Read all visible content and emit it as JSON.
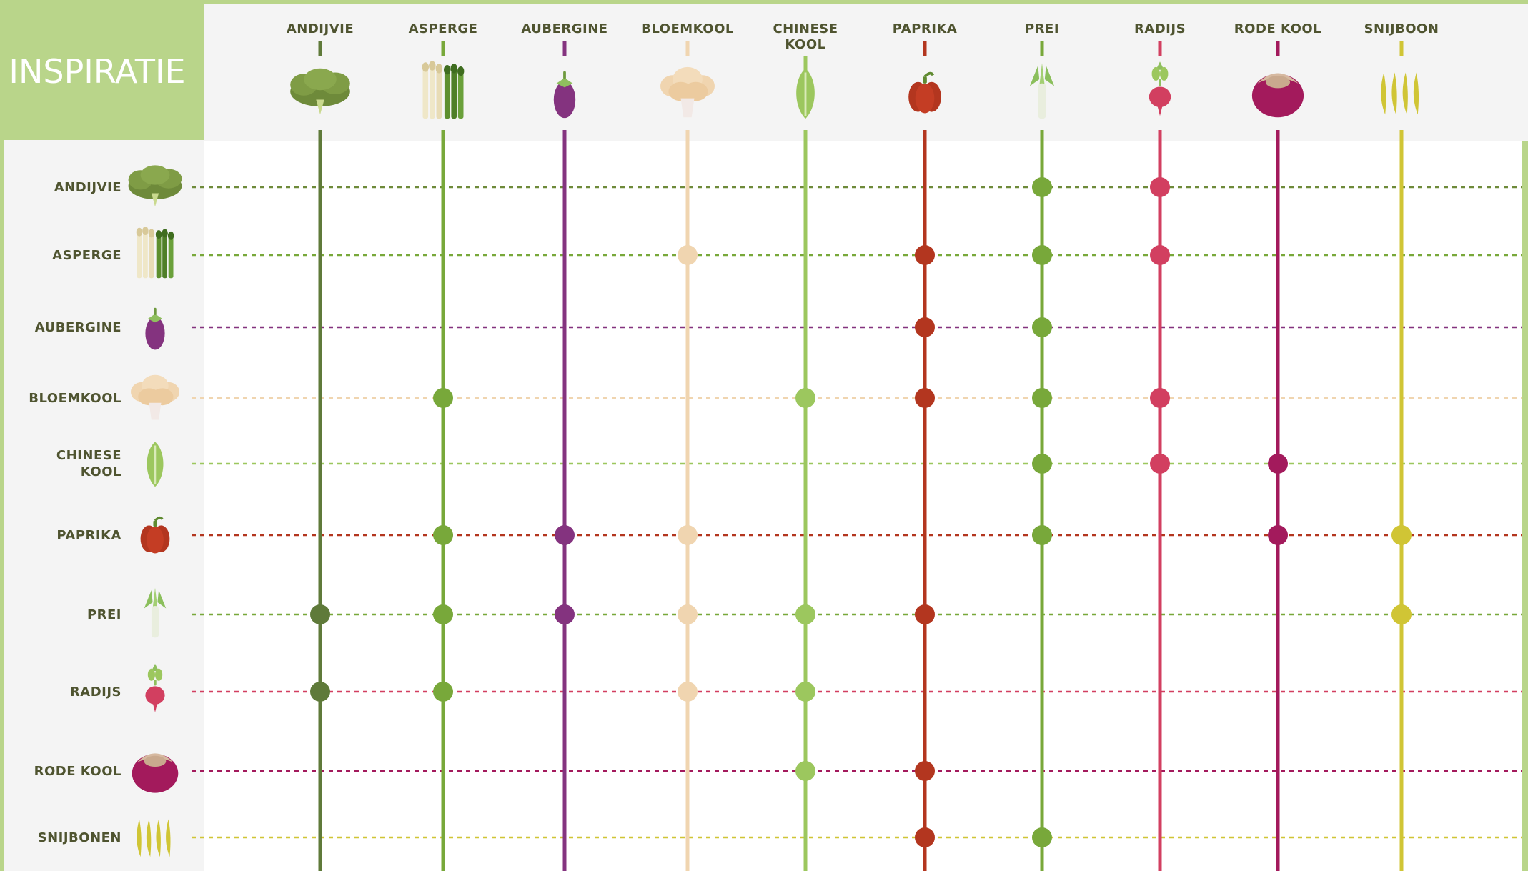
{
  "title": "INSPIRATIE",
  "chart_data": {
    "type": "matrix",
    "columns": [
      {
        "key": "andijvie",
        "label": [
          "ANDIJVIE"
        ],
        "color": "#5f7a3a",
        "icon": "endive-icon"
      },
      {
        "key": "asperge",
        "label": [
          "ASPERGE"
        ],
        "color": "#78a83a",
        "icon": "asparagus-icon"
      },
      {
        "key": "aubergine",
        "label": [
          "AUBERGINE"
        ],
        "color": "#84337f",
        "icon": "eggplant-icon"
      },
      {
        "key": "bloemkool",
        "label": [
          "BLOEMKOOL"
        ],
        "color": "#f0d5b0",
        "icon": "cauliflower-icon"
      },
      {
        "key": "chinese_kool",
        "label": [
          "CHINESE",
          "KOOL"
        ],
        "color": "#9cc75e",
        "icon": "chinese-cabbage-icon"
      },
      {
        "key": "paprika",
        "label": [
          "PAPRIKA"
        ],
        "color": "#b3361f",
        "icon": "bell-pepper-icon"
      },
      {
        "key": "prei",
        "label": [
          "PREI"
        ],
        "color": "#78a83a",
        "icon": "leek-icon"
      },
      {
        "key": "radijs",
        "label": [
          "RADIJS"
        ],
        "color": "#d23f60",
        "icon": "radish-icon"
      },
      {
        "key": "rode_kool",
        "label": [
          "RODE KOOL"
        ],
        "color": "#a31a5c",
        "icon": "red-cabbage-icon"
      },
      {
        "key": "snijboon",
        "label": [
          "SNIJBOON"
        ],
        "color": "#d0c535",
        "icon": "green-beans-icon"
      }
    ],
    "rows": [
      {
        "label": [
          "ANDIJVIE"
        ],
        "color": "#6e8a3a",
        "icon": "endive-icon",
        "matches": [
          "prei",
          "radijs"
        ]
      },
      {
        "label": [
          "ASPERGE"
        ],
        "color": "#78a83a",
        "icon": "asparagus-icon",
        "matches": [
          "bloemkool",
          "paprika",
          "prei",
          "radijs"
        ]
      },
      {
        "label": [
          "AUBERGINE"
        ],
        "color": "#84337f",
        "icon": "eggplant-icon",
        "matches": [
          "paprika",
          "prei"
        ]
      },
      {
        "label": [
          "BLOEMKOOL"
        ],
        "color": "#f0d5b0",
        "icon": "cauliflower-icon",
        "matches": [
          "asperge",
          "chinese_kool",
          "paprika",
          "prei",
          "radijs"
        ]
      },
      {
        "label": [
          "CHINESE",
          "KOOL"
        ],
        "color": "#9cc75e",
        "icon": "chinese-cabbage-icon",
        "matches": [
          "prei",
          "radijs",
          "rode_kool"
        ]
      },
      {
        "label": [
          "PAPRIKA"
        ],
        "color": "#b3361f",
        "icon": "bell-pepper-icon",
        "matches": [
          "asperge",
          "aubergine",
          "bloemkool",
          "prei",
          "rode_kool",
          "snijboon"
        ]
      },
      {
        "label": [
          "PREI"
        ],
        "color": "#78a83a",
        "icon": "leek-icon",
        "matches": [
          "andijvie",
          "asperge",
          "aubergine",
          "bloemkool",
          "chinese_kool",
          "paprika",
          "snijboon"
        ]
      },
      {
        "label": [
          "RADIJS"
        ],
        "color": "#d23f60",
        "icon": "radish-icon",
        "matches": [
          "andijvie",
          "asperge",
          "bloemkool",
          "chinese_kool"
        ]
      },
      {
        "label": [
          "RODE KOOL"
        ],
        "color": "#a31a5c",
        "icon": "red-cabbage-icon",
        "matches": [
          "chinese_kool",
          "paprika"
        ]
      },
      {
        "label": [
          "SNIJBONEN"
        ],
        "color": "#d0c535",
        "icon": "green-beans-icon",
        "matches": [
          "paprika",
          "prei"
        ]
      }
    ]
  },
  "colors": {
    "frame": "#b9d58a",
    "header_band": "#f4f4f4",
    "row_band": "#f4f4f4",
    "plot_bg": "#ffffff",
    "label_text": "#4f5430"
  }
}
